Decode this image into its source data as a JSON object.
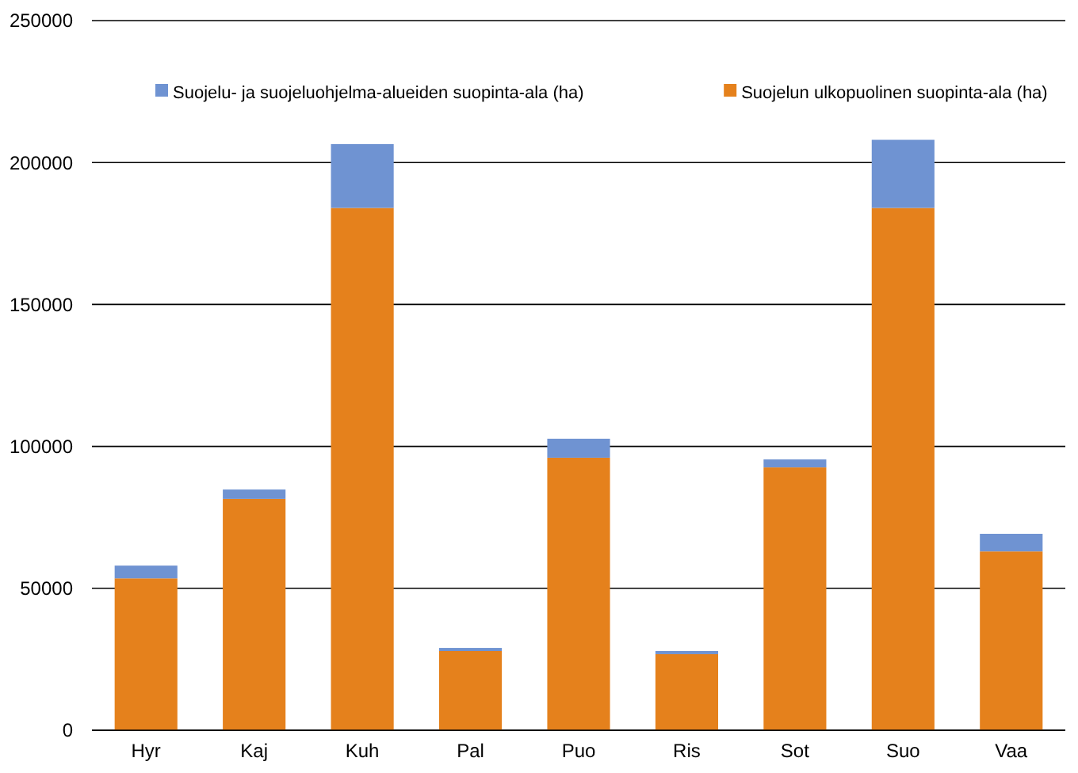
{
  "chart_data": {
    "type": "bar",
    "stacked": true,
    "categories": [
      "Hyr",
      "Kaj",
      "Kuh",
      "Pal",
      "Puo",
      "Ris",
      "Sot",
      "Suo",
      "Vaa"
    ],
    "series": [
      {
        "name": "Suojelun ulkopuolinen suopinta-ala (ha)",
        "color": "#e5811c",
        "values": [
          53500,
          81500,
          184000,
          27900,
          96000,
          26800,
          92600,
          184000,
          63000
        ]
      },
      {
        "name": "Suojelu- ja suojeluohjelma-alueiden suopinta-ala (ha)",
        "color": "#6f93d2",
        "values": [
          4500,
          3300,
          22500,
          1100,
          6700,
          1100,
          2800,
          24000,
          6200
        ]
      }
    ],
    "ylim": [
      0,
      250000
    ],
    "yticks": [
      0,
      50000,
      100000,
      150000,
      200000,
      250000
    ],
    "grid": "y",
    "legend": "top"
  }
}
